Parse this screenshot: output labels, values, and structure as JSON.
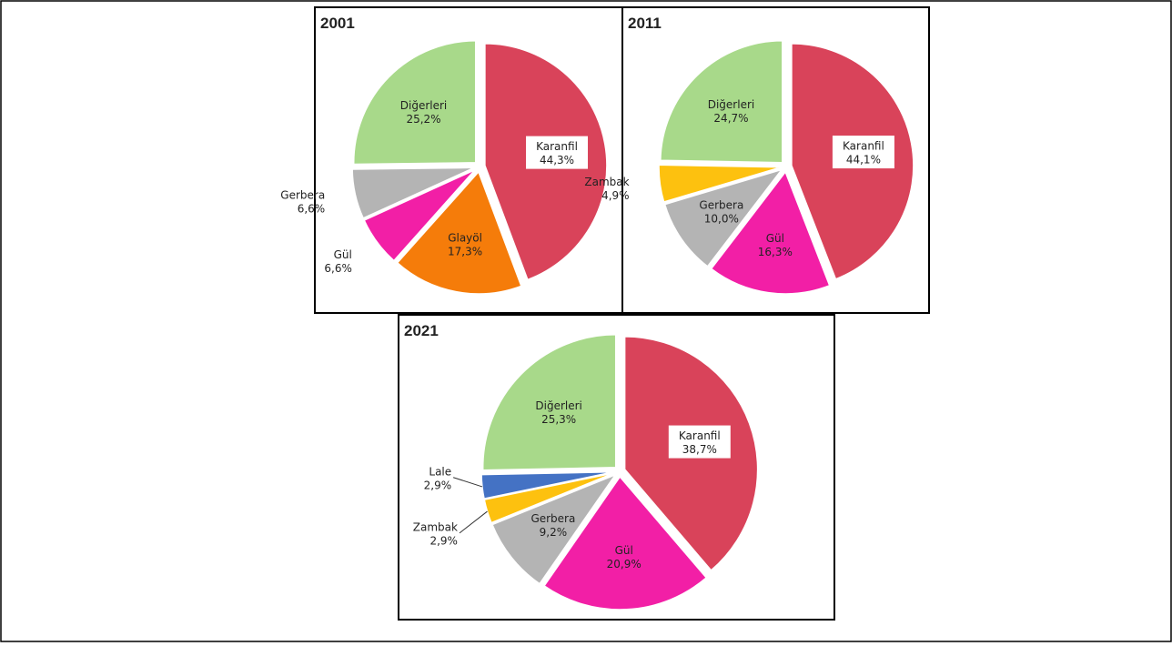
{
  "chart_data": [
    {
      "type": "pie",
      "title": "2001",
      "categories": [
        "Karanfil",
        "Glayöl",
        "Gül",
        "Gerbera",
        "Diğerleri"
      ],
      "values": [
        44.3,
        17.3,
        6.6,
        6.6,
        25.2
      ],
      "value_labels": [
        "44,3%",
        "17,3%",
        "6,6%",
        "6,6%",
        "25,2%"
      ],
      "colors": [
        "#d9435a",
        "#f57c0a",
        "#f21fa6",
        "#b4b4b4",
        "#a8d98a"
      ]
    },
    {
      "type": "pie",
      "title": "2011",
      "categories": [
        "Karanfil",
        "Gül",
        "Gerbera",
        "Zambak",
        "Diğerleri"
      ],
      "values": [
        44.1,
        16.3,
        10.0,
        4.9,
        24.7
      ],
      "value_labels": [
        "44,1%",
        "16,3%",
        "10,0%",
        "4,9%",
        "24,7%"
      ],
      "colors": [
        "#d9435a",
        "#f21fa6",
        "#b4b4b4",
        "#fdc10f",
        "#a8d98a"
      ]
    },
    {
      "type": "pie",
      "title": "2021",
      "categories": [
        "Karanfil",
        "Gül",
        "Gerbera",
        "Zambak",
        "Lale",
        "Diğerleri"
      ],
      "values": [
        38.7,
        20.9,
        9.2,
        2.9,
        2.9,
        25.3
      ],
      "value_labels": [
        "38,7%",
        "20,9%",
        "9,2%",
        "2,9%",
        "2,9%",
        "25,3%"
      ],
      "colors": [
        "#d9435a",
        "#f21fa6",
        "#b4b4b4",
        "#fdc10f",
        "#4472c4",
        "#a8d98a"
      ]
    }
  ]
}
